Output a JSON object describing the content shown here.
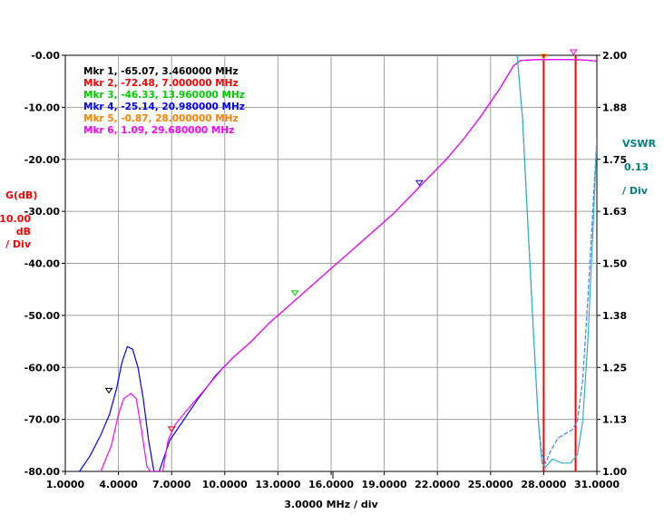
{
  "chart_data": {
    "type": "line",
    "x_axis": {
      "label": "3.0000 MHz / div",
      "range": [
        1.0,
        31.0
      ],
      "ticks": [
        "1.0000",
        "4.0000",
        "7.0000",
        "10.0000",
        "13.0000",
        "16.0000",
        "19.0000",
        "22.0000",
        "25.0000",
        "28.0000",
        "31.0000"
      ]
    },
    "y_left": {
      "label": "G(dB)",
      "scale": [
        "10.00",
        "dB",
        "/ Div"
      ],
      "range": [
        -80,
        0
      ],
      "ticks": [
        "-0.00",
        "-10.00",
        "-20.00",
        "-30.00",
        "-40.00",
        "-50.00",
        "-60.00",
        "-70.00",
        "-80.00"
      ],
      "color": "#ff0000"
    },
    "y_right": {
      "label": "VSWR",
      "scale": [
        "0.13",
        "/ Div"
      ],
      "range": [
        1.0,
        2.0
      ],
      "ticks": [
        "2.00",
        "1.88",
        "1.75",
        "1.63",
        "1.50",
        "1.38",
        "1.25",
        "1.13",
        "1.00"
      ],
      "color": "#008080"
    },
    "grid": true,
    "markers": [
      {
        "text": "Mkr 1, -65.07, 3.460000 MHz",
        "x": 3.46,
        "y": -65.07,
        "color": "#000000"
      },
      {
        "text": "Mkr 2, -72.48, 7.000000 MHz",
        "x": 7.0,
        "y": -72.48,
        "color": "#ff0000"
      },
      {
        "text": "Mkr 3, -46.33, 13.960000 MHz",
        "x": 13.96,
        "y": -46.33,
        "color": "#00cc00"
      },
      {
        "text": "Mkr 4, -25.14, 20.980000 MHz",
        "x": 20.98,
        "y": -25.14,
        "color": "#0000ff"
      },
      {
        "text": "Mkr 5, -0.87, 28.000000 MHz",
        "x": 28.0,
        "y": -0.87,
        "color": "#ff8000"
      },
      {
        "text": "Mkr 6, 1.09, 29.680000 MHz",
        "x": 29.68,
        "y": 1.09,
        "color": "#ff00ff"
      }
    ],
    "vertical_lines": [
      {
        "x": 28.0,
        "color": "#ff0000"
      },
      {
        "x": 29.8,
        "color": "#ff0000"
      }
    ],
    "series": [
      {
        "color": "#0000ff",
        "axis": "left",
        "points": [
          [
            1.8,
            -80
          ],
          [
            2.4,
            -77
          ],
          [
            3.0,
            -73
          ],
          [
            3.5,
            -69
          ],
          [
            3.9,
            -64
          ],
          [
            4.2,
            -59
          ],
          [
            4.5,
            -56
          ],
          [
            4.8,
            -56.5
          ],
          [
            5.1,
            -60
          ],
          [
            5.4,
            -66
          ],
          [
            5.7,
            -74
          ],
          [
            6.0,
            -80
          ],
          [
            6.3,
            -80
          ],
          [
            6.6,
            -77
          ],
          [
            6.9,
            -74
          ],
          [
            7.5,
            -71
          ],
          [
            8.5,
            -66
          ],
          [
            9.5,
            -61.5
          ],
          [
            10.5,
            -58
          ],
          [
            11.5,
            -55
          ],
          [
            12.5,
            -51.5
          ],
          [
            13.5,
            -48.5
          ],
          [
            14.5,
            -45.5
          ],
          [
            15.5,
            -42.5
          ],
          [
            16.5,
            -39.5
          ],
          [
            17.5,
            -36.5
          ],
          [
            18.5,
            -33.5
          ],
          [
            19.5,
            -30.5
          ],
          [
            20.5,
            -27
          ],
          [
            21.5,
            -23.5
          ],
          [
            22.5,
            -20
          ],
          [
            23.5,
            -16
          ],
          [
            24.5,
            -11.5
          ],
          [
            25.5,
            -6.5
          ],
          [
            26.3,
            -2
          ],
          [
            26.7,
            -1
          ],
          [
            27.5,
            -0.85
          ],
          [
            28.5,
            -0.8
          ],
          [
            29.5,
            -0.82
          ],
          [
            30.3,
            -0.9
          ],
          [
            31,
            -1.1
          ]
        ]
      },
      {
        "color": "#ff00ff",
        "axis": "left",
        "points": [
          [
            3.0,
            -80
          ],
          [
            3.6,
            -75
          ],
          [
            4.0,
            -69
          ],
          [
            4.3,
            -66
          ],
          [
            4.7,
            -65
          ],
          [
            5.0,
            -66
          ],
          [
            5.3,
            -72
          ],
          [
            5.6,
            -79
          ],
          [
            5.8,
            -80
          ],
          [
            6.5,
            -80
          ],
          [
            6.8,
            -74
          ],
          [
            7.2,
            -71
          ],
          [
            7.8,
            -68.5
          ],
          [
            8.8,
            -64.5
          ],
          [
            9.8,
            -60.5
          ],
          [
            10.5,
            -58
          ],
          [
            11.5,
            -55
          ],
          [
            12.5,
            -51.5
          ],
          [
            13.5,
            -48.5
          ],
          [
            14.5,
            -45.5
          ],
          [
            15.5,
            -42.5
          ],
          [
            16.5,
            -39.5
          ],
          [
            17.5,
            -36.5
          ],
          [
            18.5,
            -33.5
          ],
          [
            19.5,
            -30.5
          ],
          [
            20.5,
            -27
          ],
          [
            21.5,
            -23.5
          ],
          [
            22.5,
            -20
          ],
          [
            23.5,
            -16
          ],
          [
            24.5,
            -11.5
          ],
          [
            25.5,
            -6.5
          ],
          [
            26.3,
            -2
          ],
          [
            26.7,
            -1
          ],
          [
            27.5,
            -0.85
          ],
          [
            28.5,
            -0.8
          ],
          [
            29.5,
            -0.82
          ],
          [
            30.3,
            -0.9
          ],
          [
            31,
            -1.1
          ]
        ]
      },
      {
        "color": "#4080ff",
        "axis": "right",
        "dashed": true,
        "points": [
          [
            26.5,
            2.0
          ],
          [
            26.8,
            1.85
          ],
          [
            27.1,
            1.6
          ],
          [
            27.4,
            1.35
          ],
          [
            27.7,
            1.12
          ],
          [
            27.9,
            1.04
          ],
          [
            28.1,
            1.02
          ],
          [
            28.4,
            1.05
          ],
          [
            28.8,
            1.08
          ],
          [
            29.2,
            1.09
          ],
          [
            29.6,
            1.1
          ],
          [
            29.9,
            1.12
          ],
          [
            30.2,
            1.22
          ],
          [
            30.5,
            1.42
          ],
          [
            30.8,
            1.65
          ],
          [
            31.0,
            1.8
          ]
        ]
      },
      {
        "color": "#30b0d0",
        "axis": "right",
        "points": [
          [
            26.5,
            2.0
          ],
          [
            26.8,
            1.85
          ],
          [
            27.1,
            1.6
          ],
          [
            27.4,
            1.35
          ],
          [
            27.7,
            1.12
          ],
          [
            27.9,
            1.02
          ],
          [
            28.1,
            1.01
          ],
          [
            28.5,
            1.03
          ],
          [
            29.0,
            1.02
          ],
          [
            29.5,
            1.02
          ],
          [
            29.9,
            1.04
          ],
          [
            30.2,
            1.12
          ],
          [
            30.5,
            1.32
          ],
          [
            30.8,
            1.6
          ],
          [
            31.0,
            1.8
          ]
        ]
      }
    ]
  }
}
